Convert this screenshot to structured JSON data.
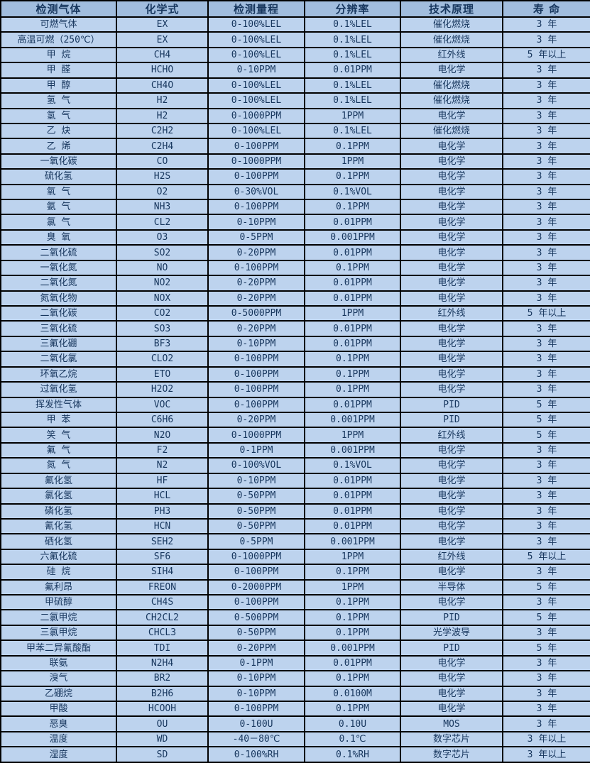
{
  "colors": {
    "header_bg": "#a1bdde",
    "row_bg": "#bdd3ee",
    "border": "#000000",
    "text": "#17365d"
  },
  "chart_data": {
    "type": "table",
    "title": "",
    "columns": [
      "检测气体",
      "化学式",
      "检测量程",
      "分辨率",
      "技术原理",
      "寿 命"
    ],
    "rows": [
      [
        "可燃气体",
        "EX",
        "0-100%LEL",
        "0.1%LEL",
        "催化燃烧",
        "3 年"
      ],
      [
        "高温可燃（250℃）",
        "EX",
        "0-100%LEL",
        "0.1%LEL",
        "催化燃烧",
        "3 年"
      ],
      [
        "甲 烷",
        "CH4",
        "0-100%LEL",
        "0.1%LEL",
        "红外线",
        "5 年以上"
      ],
      [
        "甲 醛",
        "HCHO",
        "0-10PPM",
        "0.01PPM",
        "电化学",
        "3 年"
      ],
      [
        "甲 醇",
        "CH4O",
        "0-100%LEL",
        "0.1%LEL",
        "催化燃烧",
        "3 年"
      ],
      [
        "氢 气",
        "H2",
        "0-100%LEL",
        "0.1%LEL",
        "催化燃烧",
        "3 年"
      ],
      [
        "氢 气",
        "H2",
        "0-1000PPM",
        "1PPM",
        "电化学",
        "3 年"
      ],
      [
        "乙 炔",
        "C2H2",
        "0-100%LEL",
        "0.1%LEL",
        "催化燃烧",
        "3 年"
      ],
      [
        "乙 烯",
        "C2H4",
        "0-100PPM",
        "0.1PPM",
        "电化学",
        "3 年"
      ],
      [
        "一氧化碳",
        "CO",
        "0-1000PPM",
        "1PPM",
        "电化学",
        "3 年"
      ],
      [
        "硫化氢",
        "H2S",
        "0-100PPM",
        "0.1PPM",
        "电化学",
        "3 年"
      ],
      [
        "氧 气",
        "O2",
        "0-30%VOL",
        "0.1%VOL",
        "电化学",
        "3 年"
      ],
      [
        "氨 气",
        "NH3",
        "0-100PPM",
        "0.1PPM",
        "电化学",
        "3 年"
      ],
      [
        "氯 气",
        "CL2",
        "0-10PPM",
        "0.01PPM",
        "电化学",
        "3 年"
      ],
      [
        "臭 氧",
        "O3",
        "0-5PPM",
        "0.001PPM",
        "电化学",
        "3 年"
      ],
      [
        "二氧化硫",
        "SO2",
        "0-20PPM",
        "0.01PPM",
        "电化学",
        "3 年"
      ],
      [
        "一氧化氮",
        "NO",
        "0-100PPM",
        "0.1PPM",
        "电化学",
        "3 年"
      ],
      [
        "二氧化氮",
        "NO2",
        "0-20PPM",
        "0.01PPM",
        "电化学",
        "3 年"
      ],
      [
        "氮氧化物",
        "NOX",
        "0-20PPM",
        "0.01PPM",
        "电化学",
        "3 年"
      ],
      [
        "二氧化碳",
        "CO2",
        "0-5000PPM",
        "1PPM",
        "红外线",
        "5 年以上"
      ],
      [
        "三氧化硫",
        "SO3",
        "0-20PPM",
        "0.01PPM",
        "电化学",
        "3 年"
      ],
      [
        "三氟化硼",
        "BF3",
        "0-10PPM",
        "0.01PPM",
        "电化学",
        "3 年"
      ],
      [
        "二氧化氯",
        "CLO2",
        "0-100PPM",
        "0.1PPM",
        "电化学",
        "3 年"
      ],
      [
        "环氧乙烷",
        "ETO",
        "0-100PPM",
        "0.1PPM",
        "电化学",
        "3 年"
      ],
      [
        "过氧化氢",
        "H2O2",
        "0-100PPM",
        "0.1PPM",
        "电化学",
        "3 年"
      ],
      [
        "挥发性气体",
        "VOC",
        "0-100PPM",
        "0.01PPM",
        "PID",
        "5 年"
      ],
      [
        "甲 苯",
        "C6H6",
        "0-20PPM",
        "0.001PPM",
        "PID",
        "5 年"
      ],
      [
        "笑 气",
        "N2O",
        "0-1000PPM",
        "1PPM",
        "红外线",
        "5 年"
      ],
      [
        "氟 气",
        "F2",
        "0-1PPM",
        "0.001PPM",
        "电化学",
        "3 年"
      ],
      [
        "氮 气",
        "N2",
        "0-100%VOL",
        "0.1%VOL",
        "电化学",
        "3 年"
      ],
      [
        "氟化氢",
        "HF",
        "0-10PPM",
        "0.01PPM",
        "电化学",
        "3 年"
      ],
      [
        "氯化氢",
        "HCL",
        "0-50PPM",
        "0.01PPM",
        "电化学",
        "3 年"
      ],
      [
        "磷化氢",
        "PH3",
        "0-50PPM",
        "0.01PPM",
        "电化学",
        "3 年"
      ],
      [
        "氰化氢",
        "HCN",
        "0-50PPM",
        "0.01PPM",
        "电化学",
        "3 年"
      ],
      [
        "硒化氢",
        "SEH2",
        "0-5PPM",
        "0.001PPM",
        "电化学",
        "3 年"
      ],
      [
        "六氟化硫",
        "SF6",
        "0-1000PPM",
        "1PPM",
        "红外线",
        "5 年以上"
      ],
      [
        "硅 烷",
        "SIH4",
        "0-100PPM",
        "0.1PPM",
        "电化学",
        "3 年"
      ],
      [
        "氟利昂",
        "FREON",
        "0-2000PPM",
        "1PPM",
        "半导体",
        "5 年"
      ],
      [
        "甲硫醇",
        "CH4S",
        "0-100PPM",
        "0.1PPM",
        "电化学",
        "3 年"
      ],
      [
        "二氯甲烷",
        "CH2CL2",
        "0-500PPM",
        "0.1PPM",
        "PID",
        "5 年"
      ],
      [
        "三氯甲烷",
        "CHCL3",
        "0-50PPM",
        "0.1PPM",
        "光学波导",
        "3 年"
      ],
      [
        "甲苯二异氰酸酯",
        "TDI",
        "0-20PPM",
        "0.001PPM",
        "PID",
        "5 年"
      ],
      [
        "联氨",
        "N2H4",
        "0-1PPM",
        "0.01PPM",
        "电化学",
        "3 年"
      ],
      [
        "溴气",
        "BR2",
        "0-10PPM",
        "0.1PPM",
        "电化学",
        "3 年"
      ],
      [
        "乙硼烷",
        "B2H6",
        "0-10PPM",
        "0.0100M",
        "电化学",
        "3 年"
      ],
      [
        "甲酸",
        "HCOOH",
        "0-100PPM",
        "0.1PPM",
        "电化学",
        "3 年"
      ],
      [
        "恶臭",
        "OU",
        "0-100U",
        "0.10U",
        "MOS",
        "3 年"
      ],
      [
        "温度",
        "WD",
        "-40－80℃",
        "0.1℃",
        "数字芯片",
        "3 年以上"
      ],
      [
        "湿度",
        "SD",
        "0-100%RH",
        "0.1%RH",
        "数字芯片",
        "3 年以上"
      ]
    ]
  }
}
